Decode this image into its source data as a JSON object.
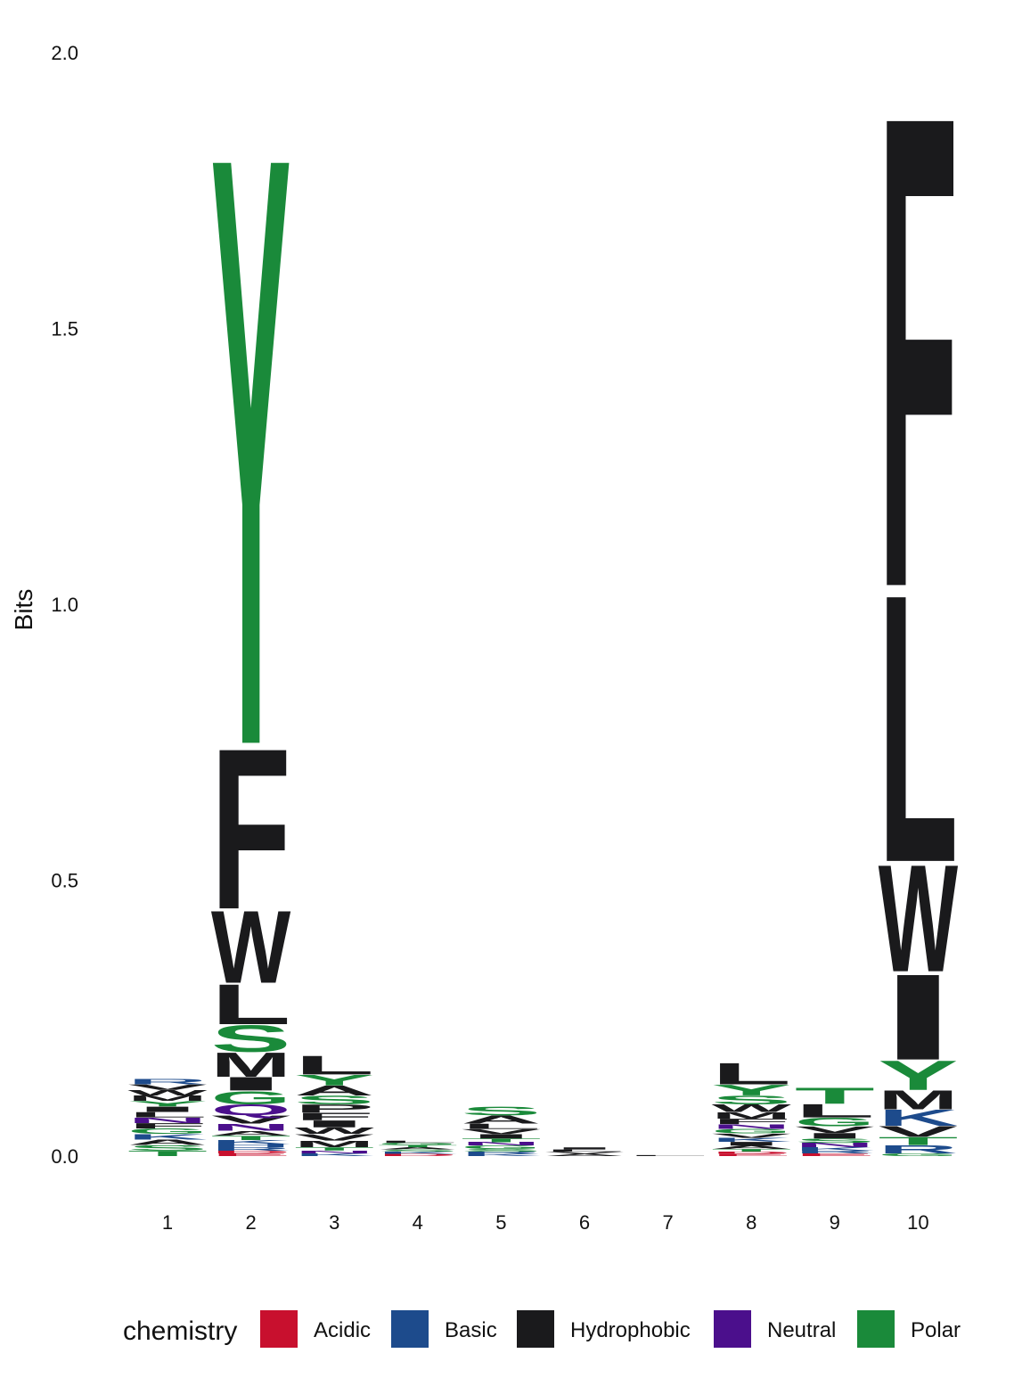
{
  "chart_data": {
    "type": "sequence-logo",
    "ylabel": "Bits",
    "ylim": [
      0,
      2.0
    ],
    "y_ticks": [
      "0.0",
      "0.5",
      "1.0",
      "1.5",
      "2.0"
    ],
    "y_tick_values": [
      0,
      0.5,
      1.0,
      1.5,
      2.0
    ],
    "positions": [
      "1",
      "2",
      "3",
      "4",
      "5",
      "6",
      "7",
      "8",
      "9",
      "10"
    ],
    "legend": {
      "title": "chemistry",
      "placement": "bottom",
      "entries": [
        {
          "name": "Acidic",
          "color": "#c8102e"
        },
        {
          "name": "Basic",
          "color": "#1d4b8c"
        },
        {
          "name": "Hydrophobic",
          "color": "#1a1a1c"
        },
        {
          "name": "Neutral",
          "color": "#4b0f8c"
        },
        {
          "name": "Polar",
          "color": "#1a8a3a"
        }
      ]
    },
    "stacks": [
      {
        "position": "1",
        "letters": [
          {
            "aa": "T",
            "class": "Polar",
            "bits": 0.01
          },
          {
            "aa": "S",
            "class": "Polar",
            "bits": 0.01
          },
          {
            "aa": "A",
            "class": "Hydrophobic",
            "bits": 0.01
          },
          {
            "aa": "K",
            "class": "Basic",
            "bits": 0.01
          },
          {
            "aa": "G",
            "class": "Polar",
            "bits": 0.01
          },
          {
            "aa": "F",
            "class": "Hydrophobic",
            "bits": 0.01
          },
          {
            "aa": "N",
            "class": "Neutral",
            "bits": 0.01
          },
          {
            "aa": "L",
            "class": "Hydrophobic",
            "bits": 0.01
          },
          {
            "aa": "I",
            "class": "Hydrophobic",
            "bits": 0.01
          },
          {
            "aa": "Y",
            "class": "Polar",
            "bits": 0.01
          },
          {
            "aa": "M",
            "class": "Hydrophobic",
            "bits": 0.01
          },
          {
            "aa": "W",
            "class": "Hydrophobic",
            "bits": 0.01
          },
          {
            "aa": "V",
            "class": "Hydrophobic",
            "bits": 0.01
          },
          {
            "aa": "R",
            "class": "Basic",
            "bits": 0.01
          }
        ]
      },
      {
        "position": "2",
        "letters": [
          {
            "aa": "E",
            "class": "Acidic",
            "bits": 0.005
          },
          {
            "aa": "D",
            "class": "Acidic",
            "bits": 0.005
          },
          {
            "aa": "R",
            "class": "Basic",
            "bits": 0.006
          },
          {
            "aa": "H",
            "class": "Basic",
            "bits": 0.006
          },
          {
            "aa": "K",
            "class": "Basic",
            "bits": 0.007
          },
          {
            "aa": "T",
            "class": "Polar",
            "bits": 0.008
          },
          {
            "aa": "A",
            "class": "Hydrophobic",
            "bits": 0.009
          },
          {
            "aa": "N",
            "class": "Neutral",
            "bits": 0.013
          },
          {
            "aa": "V",
            "class": "Hydrophobic",
            "bits": 0.015
          },
          {
            "aa": "Q",
            "class": "Neutral",
            "bits": 0.02
          },
          {
            "aa": "G",
            "class": "Polar",
            "bits": 0.025
          },
          {
            "aa": "I",
            "class": "Hydrophobic",
            "bits": 0.025
          },
          {
            "aa": "M",
            "class": "Hydrophobic",
            "bits": 0.045
          },
          {
            "aa": "S",
            "class": "Polar",
            "bits": 0.05
          },
          {
            "aa": "L",
            "class": "Hydrophobic",
            "bits": 0.075
          },
          {
            "aa": "W",
            "class": "Hydrophobic",
            "bits": 0.135
          },
          {
            "aa": "F",
            "class": "Hydrophobic",
            "bits": 0.3
          },
          {
            "aa": "Y",
            "class": "Polar",
            "bits": 1.1
          }
        ]
      },
      {
        "position": "3",
        "letters": [
          {
            "aa": "K",
            "class": "Basic",
            "bits": 0.005
          },
          {
            "aa": "N",
            "class": "Neutral",
            "bits": 0.005
          },
          {
            "aa": "T",
            "class": "Polar",
            "bits": 0.006
          },
          {
            "aa": "M",
            "class": "Hydrophobic",
            "bits": 0.012
          },
          {
            "aa": "V",
            "class": "Hydrophobic",
            "bits": 0.012
          },
          {
            "aa": "W",
            "class": "Hydrophobic",
            "bits": 0.012
          },
          {
            "aa": "I",
            "class": "Hydrophobic",
            "bits": 0.013
          },
          {
            "aa": "F",
            "class": "Hydrophobic",
            "bits": 0.014
          },
          {
            "aa": "P",
            "class": "Hydrophobic",
            "bits": 0.015
          },
          {
            "aa": "S",
            "class": "Polar",
            "bits": 0.016
          },
          {
            "aa": "A",
            "class": "Hydrophobic",
            "bits": 0.018
          },
          {
            "aa": "Y",
            "class": "Polar",
            "bits": 0.02
          },
          {
            "aa": "L",
            "class": "Hydrophobic",
            "bits": 0.035
          }
        ]
      },
      {
        "position": "4",
        "letters": [
          {
            "aa": "D",
            "class": "Acidic",
            "bits": 0.004
          },
          {
            "aa": "K",
            "class": "Basic",
            "bits": 0.004
          },
          {
            "aa": "S",
            "class": "Polar",
            "bits": 0.004
          },
          {
            "aa": "A",
            "class": "Hydrophobic",
            "bits": 0.004
          },
          {
            "aa": "T",
            "class": "Polar",
            "bits": 0.004
          },
          {
            "aa": "G",
            "class": "Polar",
            "bits": 0.004
          },
          {
            "aa": "L",
            "class": "Hydrophobic",
            "bits": 0.004
          }
        ]
      },
      {
        "position": "5",
        "letters": [
          {
            "aa": "K",
            "class": "Basic",
            "bits": 0.004
          },
          {
            "aa": "R",
            "class": "Basic",
            "bits": 0.004
          },
          {
            "aa": "S",
            "class": "Polar",
            "bits": 0.005
          },
          {
            "aa": "G",
            "class": "Polar",
            "bits": 0.006
          },
          {
            "aa": "N",
            "class": "Neutral",
            "bits": 0.006
          },
          {
            "aa": "T",
            "class": "Polar",
            "bits": 0.007
          },
          {
            "aa": "I",
            "class": "Hydrophobic",
            "bits": 0.008
          },
          {
            "aa": "V",
            "class": "Hydrophobic",
            "bits": 0.009
          },
          {
            "aa": "L",
            "class": "Hydrophobic",
            "bits": 0.01
          },
          {
            "aa": "A",
            "class": "Hydrophobic",
            "bits": 0.015
          },
          {
            "aa": "S",
            "class": "Polar",
            "bits": 0.016
          }
        ]
      },
      {
        "position": "6",
        "letters": [
          {
            "aa": "A",
            "class": "Hydrophobic",
            "bits": 0.004
          },
          {
            "aa": "V",
            "class": "Hydrophobic",
            "bits": 0.004
          },
          {
            "aa": "L",
            "class": "Hydrophobic",
            "bits": 0.004
          },
          {
            "aa": "I",
            "class": "Hydrophobic",
            "bits": 0.004
          }
        ]
      },
      {
        "position": "7",
        "letters": [
          {
            "aa": "L",
            "class": "Hydrophobic",
            "bits": 0.002
          }
        ]
      },
      {
        "position": "8",
        "letters": [
          {
            "aa": "E",
            "class": "Acidic",
            "bits": 0.004
          },
          {
            "aa": "D",
            "class": "Acidic",
            "bits": 0.004
          },
          {
            "aa": "T",
            "class": "Polar",
            "bits": 0.005
          },
          {
            "aa": "A",
            "class": "Hydrophobic",
            "bits": 0.006
          },
          {
            "aa": "I",
            "class": "Hydrophobic",
            "bits": 0.007
          },
          {
            "aa": "K",
            "class": "Basic",
            "bits": 0.007
          },
          {
            "aa": "V",
            "class": "Hydrophobic",
            "bits": 0.008
          },
          {
            "aa": "G",
            "class": "Polar",
            "bits": 0.008
          },
          {
            "aa": "N",
            "class": "Neutral",
            "bits": 0.009
          },
          {
            "aa": "F",
            "class": "Hydrophobic",
            "bits": 0.01
          },
          {
            "aa": "M",
            "class": "Hydrophobic",
            "bits": 0.012
          },
          {
            "aa": "W",
            "class": "Hydrophobic",
            "bits": 0.014
          },
          {
            "aa": "S",
            "class": "Polar",
            "bits": 0.016
          },
          {
            "aa": "Y",
            "class": "Polar",
            "bits": 0.02
          },
          {
            "aa": "L",
            "class": "Hydrophobic",
            "bits": 0.04
          }
        ]
      },
      {
        "position": "9",
        "letters": [
          {
            "aa": "E",
            "class": "Acidic",
            "bits": 0.005
          },
          {
            "aa": "R",
            "class": "Basic",
            "bits": 0.005
          },
          {
            "aa": "K",
            "class": "Basic",
            "bits": 0.006
          },
          {
            "aa": "N",
            "class": "Neutral",
            "bits": 0.008
          },
          {
            "aa": "S",
            "class": "Polar",
            "bits": 0.008
          },
          {
            "aa": "I",
            "class": "Hydrophobic",
            "bits": 0.01
          },
          {
            "aa": "V",
            "class": "Hydrophobic",
            "bits": 0.012
          },
          {
            "aa": "G",
            "class": "Polar",
            "bits": 0.016
          },
          {
            "aa": "L",
            "class": "Hydrophobic",
            "bits": 0.025
          },
          {
            "aa": "T",
            "class": "Polar",
            "bits": 0.03
          }
        ]
      },
      {
        "position": "10",
        "letters": [
          {
            "aa": "G",
            "class": "Polar",
            "bits": 0.005
          },
          {
            "aa": "R",
            "class": "Basic",
            "bits": 0.015
          },
          {
            "aa": "T",
            "class": "Polar",
            "bits": 0.015
          },
          {
            "aa": "V",
            "class": "Hydrophobic",
            "bits": 0.02
          },
          {
            "aa": "K",
            "class": "Basic",
            "bits": 0.03
          },
          {
            "aa": "M",
            "class": "Hydrophobic",
            "bits": 0.035
          },
          {
            "aa": "Y",
            "class": "Polar",
            "bits": 0.055
          },
          {
            "aa": "I",
            "class": "Hydrophobic",
            "bits": 0.16
          },
          {
            "aa": "W",
            "class": "Hydrophobic",
            "bits": 0.2
          },
          {
            "aa": "L",
            "class": "Hydrophobic",
            "bits": 0.5
          },
          {
            "aa": "F",
            "class": "Hydrophobic",
            "bits": 0.88
          }
        ]
      }
    ]
  }
}
